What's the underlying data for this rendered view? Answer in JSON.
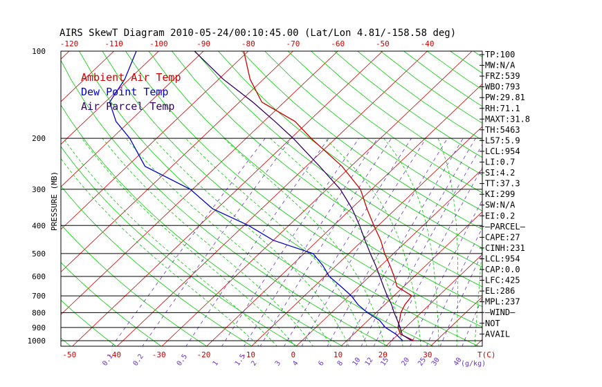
{
  "title": "AIRS SkewT Diagram 2010-05-24/00:10:45.00 (Lat/Lon 4.81/-158.58 deg)",
  "y_axis_label": "PRESSURE (MB)",
  "legend": [
    {
      "label": "Ambient Air Temp",
      "color": "#cc0000"
    },
    {
      "label": "Dew Point Temp",
      "color": "#0000cc"
    },
    {
      "label": "Air Parcel Temp",
      "color": "#330066"
    }
  ],
  "stats": [
    "TP:100",
    "MW:N/A",
    "FRZ:539",
    "WBO:793",
    "PW:29.81",
    "RH:71.1",
    "MAXT:31.8",
    "TH:5463",
    "L57:5.9",
    "LCL:954",
    "LI:0.7",
    "SI:4.2",
    "TT:37.3",
    "KI:299",
    "SW:N/A",
    "EI:0.2",
    "—PARCEL—",
    "CAPE:27",
    "CINH:231",
    "LCL:954",
    "CAP:0.0",
    "LFC:425",
    "EL:286",
    "MPL:237",
    "—WIND—",
    "NOT",
    "AVAIL"
  ],
  "colors": {
    "isotherm": "#cc0000",
    "dry_adiabat": "#00cc00",
    "moist_adiabat": "#00cc00",
    "mixing_ratio": "#6633cc",
    "ambient": "#cc0000",
    "dewpoint": "#0000cc",
    "parcel": "#330066",
    "axis_text": "#cc0000",
    "mixing_text": "#6633cc"
  },
  "chart_data": {
    "type": "line",
    "title": "AIRS SkewT Diagram 2010-05-24/00:10:45.00 (Lat/Lon 4.81/-158.58 deg)",
    "ylabel": "PRESSURE (MB)",
    "xlabel": "T(C)",
    "y_scale": "log",
    "pressure_ticks": [
      100,
      200,
      300,
      400,
      500,
      600,
      700,
      800,
      900,
      1000
    ],
    "pressure_range": [
      1050,
      100
    ],
    "top_temperature_ticks": [
      -120,
      -110,
      -100,
      -90,
      -80,
      -70,
      -60,
      -50,
      -40
    ],
    "bottom_temperature_ticks": [
      -50,
      -40,
      -30,
      -20,
      -10,
      0,
      10,
      20,
      30
    ],
    "bottom_axis_unit": "T(C)",
    "mixing_ratio_ticks": [
      "0.1",
      "0.2",
      "0.5",
      "1",
      "1.5",
      "2",
      "3",
      "4",
      "6",
      "8",
      "10",
      "12",
      "15",
      "20",
      "25",
      "30",
      "40"
    ],
    "mixing_ratio_unit": "(g/kg)",
    "series": [
      {
        "name": "Ambient Air Temp",
        "p": [
          1000,
          950,
          900,
          850,
          800,
          750,
          700,
          650,
          600,
          550,
          500,
          450,
          400,
          350,
          300,
          250,
          200,
          175,
          150,
          125,
          100
        ],
        "t": [
          25.0,
          20.5,
          18.3,
          17.0,
          15.5,
          14.5,
          14.0,
          8.5,
          5.5,
          2.0,
          -2.0,
          -6.0,
          -11.0,
          -16.5,
          -22.5,
          -32.0,
          -45.5,
          -53.0,
          -65.0,
          -73.0,
          -81.0
        ]
      },
      {
        "name": "Dew Point Temp",
        "p": [
          1000,
          950,
          900,
          850,
          800,
          750,
          700,
          650,
          600,
          550,
          500,
          450,
          400,
          350,
          300,
          250,
          200,
          175,
          150,
          125,
          100
        ],
        "t": [
          22.5,
          19.5,
          15.5,
          12.5,
          8.0,
          4.0,
          0.5,
          -4.0,
          -9.0,
          -13.0,
          -18.0,
          -30.0,
          -39.0,
          -51.0,
          -60.5,
          -76.0,
          -86.0,
          -93.0,
          -99.0,
          -101.0,
          -105.0
        ]
      },
      {
        "name": "Air Parcel Temp",
        "p": [
          1000,
          954,
          900,
          850,
          800,
          750,
          700,
          650,
          600,
          550,
          500,
          450,
          400,
          350,
          300,
          250,
          200,
          175,
          150,
          125,
          100
        ],
        "t": [
          24.5,
          21.0,
          18.8,
          16.5,
          14.0,
          11.5,
          8.5,
          5.5,
          2.3,
          -1.2,
          -5.2,
          -9.5,
          -14.2,
          -19.8,
          -27.0,
          -37.0,
          -49.5,
          -57.5,
          -67.0,
          -79.0,
          -92.0
        ]
      }
    ]
  }
}
